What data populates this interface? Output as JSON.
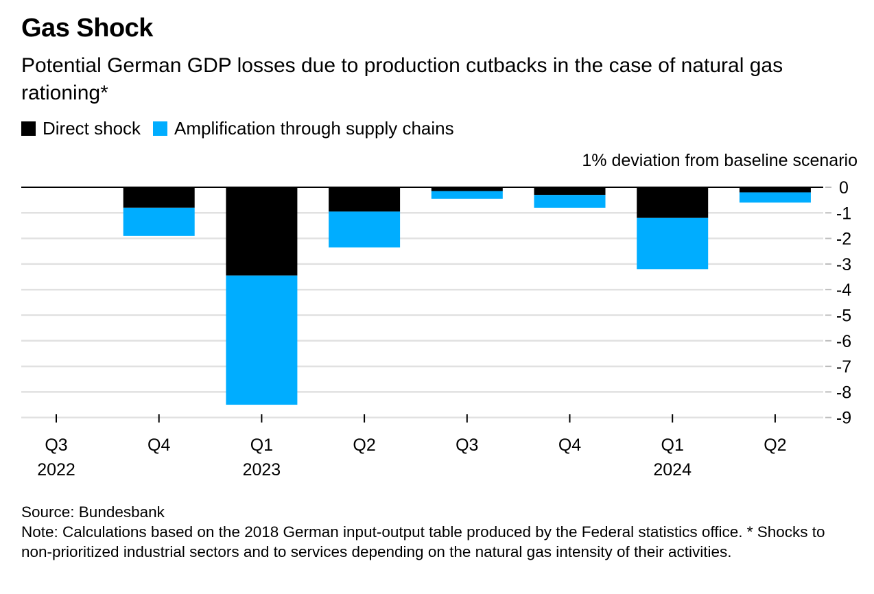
{
  "header": {
    "title": "Gas Shock",
    "subtitle": "Potential German GDP losses due to production cutbacks in the case of natural gas rationing*"
  },
  "legend": {
    "items": [
      {
        "label": "Direct shock",
        "color": "#000000"
      },
      {
        "label": "Amplification through supply chains",
        "color": "#00adff"
      }
    ]
  },
  "footer": {
    "source": "Source: Bundesbank",
    "note": "Note: Calculations based on the 2018 German input-output table produced by the Federal statistics office. * Shocks to non-prioritized industrial sectors and to services depending on the natural gas intensity of their activities."
  },
  "chart_data": {
    "type": "bar",
    "stacked": true,
    "unit_label": "1% deviation from baseline scenario",
    "categories": [
      "Q3",
      "Q4",
      "Q1",
      "Q2",
      "Q3",
      "Q4",
      "Q1",
      "Q2"
    ],
    "year_labels": [
      "2022",
      "",
      "2023",
      "",
      "",
      "",
      "2024",
      ""
    ],
    "series": [
      {
        "name": "Direct shock",
        "color": "#000000",
        "values": [
          0,
          -0.8,
          -3.45,
          -0.95,
          -0.15,
          -0.3,
          -1.2,
          -0.2
        ]
      },
      {
        "name": "Amplification through supply chains",
        "color": "#00adff",
        "values": [
          0,
          -1.1,
          -5.05,
          -1.4,
          -0.3,
          -0.5,
          -2.0,
          -0.4
        ]
      }
    ],
    "ylim": [
      -9,
      0
    ],
    "yticks": [
      0,
      -1,
      -2,
      -3,
      -4,
      -5,
      -6,
      -7,
      -8,
      -9
    ],
    "ytick_labels": [
      "0",
      "-1",
      "-2",
      "-3",
      "-4",
      "-5",
      "-6",
      "-7",
      "-8",
      "-9"
    ],
    "y_axis_position": "right",
    "grid": true,
    "legend_position": "top-left"
  }
}
